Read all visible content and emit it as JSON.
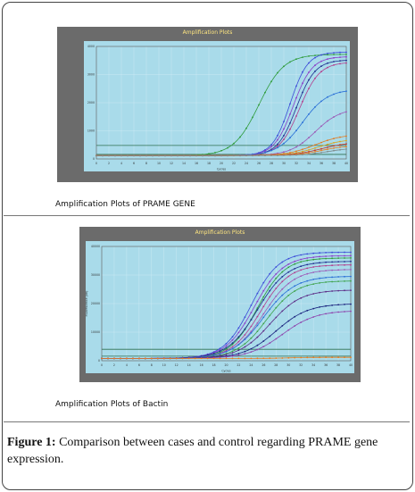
{
  "panels": [
    {
      "title": "Amplification Plots",
      "caption": "Amplification Plots of PRAME GENE",
      "y_axis_label": "Fluorescence (dR)",
      "x_axis_label": "Cycles",
      "y_ticks": [
        "4000",
        "3000",
        "2000",
        "1000",
        "0"
      ],
      "x_ticks": [
        "0",
        "2",
        "4",
        "6",
        "8",
        "10",
        "12",
        "14",
        "16",
        "18",
        "20",
        "22",
        "24",
        "26",
        "28",
        "30",
        "32",
        "34",
        "36",
        "38",
        "40"
      ]
    },
    {
      "title": "Amplification Plots",
      "caption": "Amplification Plots of Bactin",
      "y_axis_label": "Fluorescence (dR)",
      "x_axis_label": "Cycles",
      "y_ticks": [
        "40000",
        "30000",
        "20000",
        "10000",
        "0"
      ],
      "x_ticks": [
        "0",
        "2",
        "4",
        "6",
        "8",
        "10",
        "12",
        "14",
        "16",
        "18",
        "20",
        "22",
        "24",
        "26",
        "28",
        "30",
        "32",
        "34",
        "36",
        "38",
        "40"
      ]
    }
  ],
  "figure_caption": {
    "label": "Figure 1:",
    "text": " Comparison between cases and control regarding PRAME gene expression."
  },
  "colors": {
    "panel_bg": "#6b6b6b",
    "plot_bg": "#a9dbea",
    "title": "#ffe680"
  }
}
